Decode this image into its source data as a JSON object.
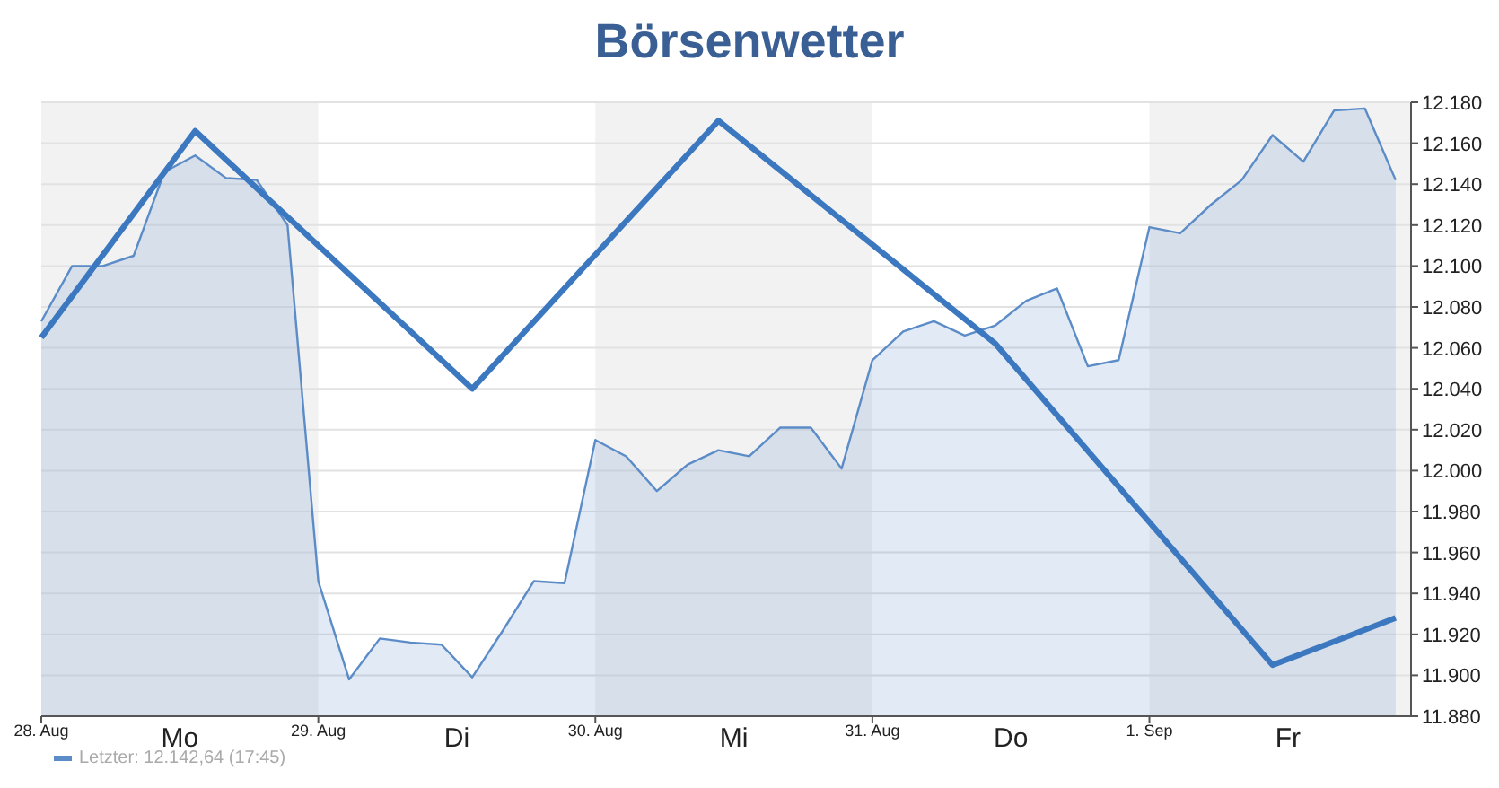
{
  "chart_data": {
    "type": "area",
    "title": "Börsenwetter",
    "categories": [
      "28. Aug",
      null,
      null,
      null,
      null,
      null,
      null,
      null,
      null,
      "29. Aug",
      null,
      null,
      null,
      null,
      null,
      null,
      null,
      null,
      "30. Aug",
      null,
      null,
      null,
      null,
      null,
      null,
      null,
      null,
      "31. Aug",
      null,
      null,
      null,
      null,
      null,
      null,
      null,
      null,
      "1. Sep",
      null,
      null,
      null,
      null,
      null,
      null,
      null,
      null
    ],
    "annotations": [
      "Mo",
      "Di",
      "Mi",
      "Do",
      "Fr"
    ],
    "ylim": [
      11880,
      12180
    ],
    "yticks": [
      {
        "value": 11880,
        "label": "11.880"
      },
      {
        "value": 11900,
        "label": "11.900"
      },
      {
        "value": 11920,
        "label": "11.920"
      },
      {
        "value": 11940,
        "label": "11.940"
      },
      {
        "value": 11960,
        "label": "11.960"
      },
      {
        "value": 11980,
        "label": "11.980"
      },
      {
        "value": 12000,
        "label": "12.000"
      },
      {
        "value": 12020,
        "label": "12.020"
      },
      {
        "value": 12040,
        "label": "12.040"
      },
      {
        "value": 12060,
        "label": "12.060"
      },
      {
        "value": 12080,
        "label": "12.080"
      },
      {
        "value": 12100,
        "label": "12.100"
      },
      {
        "value": 12120,
        "label": "12.120"
      },
      {
        "value": 12140,
        "label": "12.140"
      },
      {
        "value": 12160,
        "label": "12.160"
      },
      {
        "value": 12180,
        "label": "12.180"
      }
    ],
    "grid": "y",
    "legend": "bottom left",
    "series": [
      {
        "name": "Letzter: 12.142,64 (17:45)",
        "color": "#5b8cc8",
        "values": [
          12073,
          12100,
          12100,
          12105,
          12146,
          12154,
          12143,
          12142,
          12120,
          11946,
          11898,
          11918,
          11916,
          11915,
          11899,
          11922,
          11946,
          11945,
          12015,
          12007,
          11990,
          12003,
          12010,
          12007,
          12021,
          12021,
          12001,
          12054,
          12068,
          12073,
          12066,
          12071,
          12083,
          12089,
          12051,
          12054,
          12119,
          12116,
          12130,
          12142,
          12164,
          12151,
          12176,
          12177,
          12142
        ]
      },
      {
        "type": "line",
        "color": "#3b78c0",
        "values": [
          12065,
          null,
          null,
          null,
          null,
          12166,
          null,
          null,
          null,
          null,
          null,
          null,
          null,
          null,
          12040,
          null,
          null,
          null,
          null,
          null,
          null,
          null,
          12171,
          null,
          null,
          null,
          null,
          null,
          null,
          null,
          null,
          12062,
          null,
          null,
          null,
          null,
          null,
          null,
          null,
          null,
          11905,
          null,
          null,
          null,
          11928
        ]
      }
    ]
  }
}
